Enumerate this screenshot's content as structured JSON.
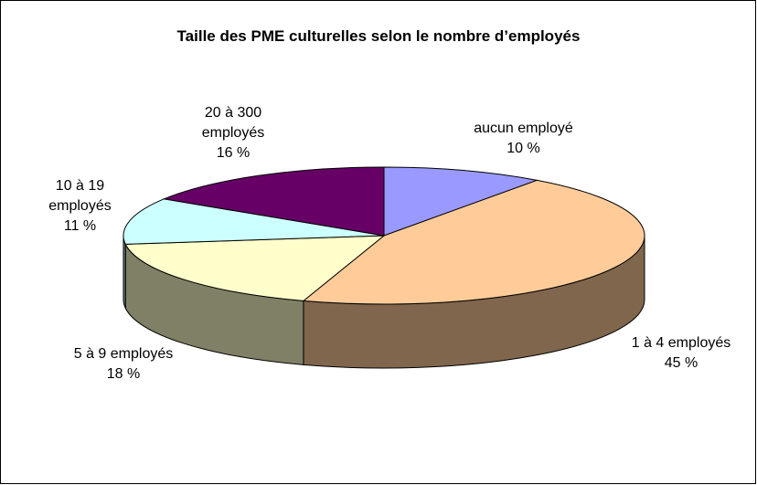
{
  "chart_data": {
    "type": "pie",
    "title": "Taille des PME culturelles selon le nombre d’employés",
    "categories": [
      "aucun employé",
      "1 à 4 employés",
      "5 à 9 employés",
      "10 à 19 employés",
      "20 à 300 employés"
    ],
    "values": [
      10,
      45,
      18,
      11,
      16
    ],
    "value_labels": [
      "10 %",
      "45 %",
      "18 %",
      "11 %",
      "16 %"
    ],
    "colors": [
      "#9999ff",
      "#ffcc99",
      "#ffffcc",
      "#ccffff",
      "#660066"
    ]
  }
}
